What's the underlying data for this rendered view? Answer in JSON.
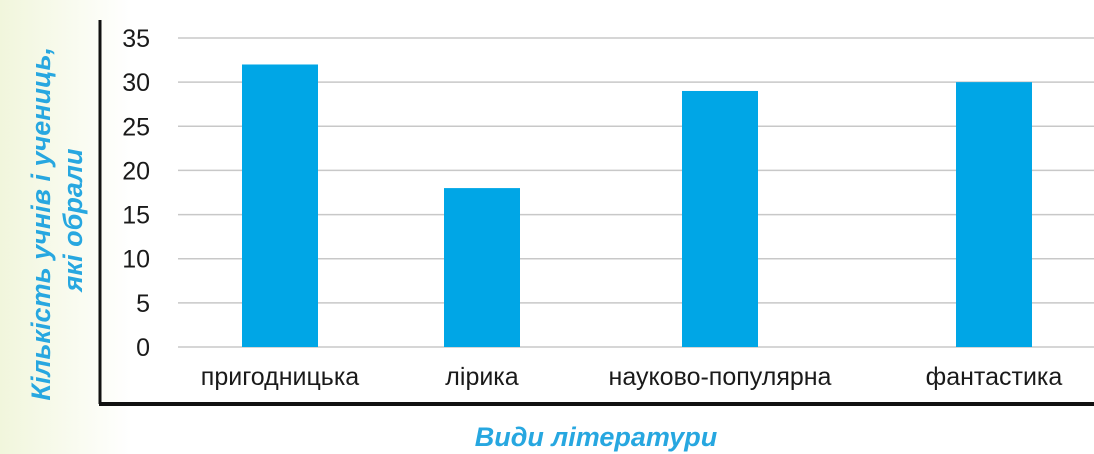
{
  "chart_data": {
    "type": "bar",
    "categories": [
      "пригодницька",
      "лірика",
      "науково-популярна",
      "фантастика"
    ],
    "values": [
      32,
      18,
      29,
      30
    ],
    "xlabel": "Види літератури",
    "ylabel_lines": [
      "Кількість учнів і учениць,",
      "які обрали"
    ],
    "yticks": [
      0,
      5,
      10,
      15,
      20,
      25,
      30,
      35
    ],
    "ylim": [
      0,
      35
    ],
    "grid": true,
    "bar_color": "#00a6e6",
    "grid_color": "#c8c8c8",
    "axis_title_color": "#27a7e0"
  }
}
